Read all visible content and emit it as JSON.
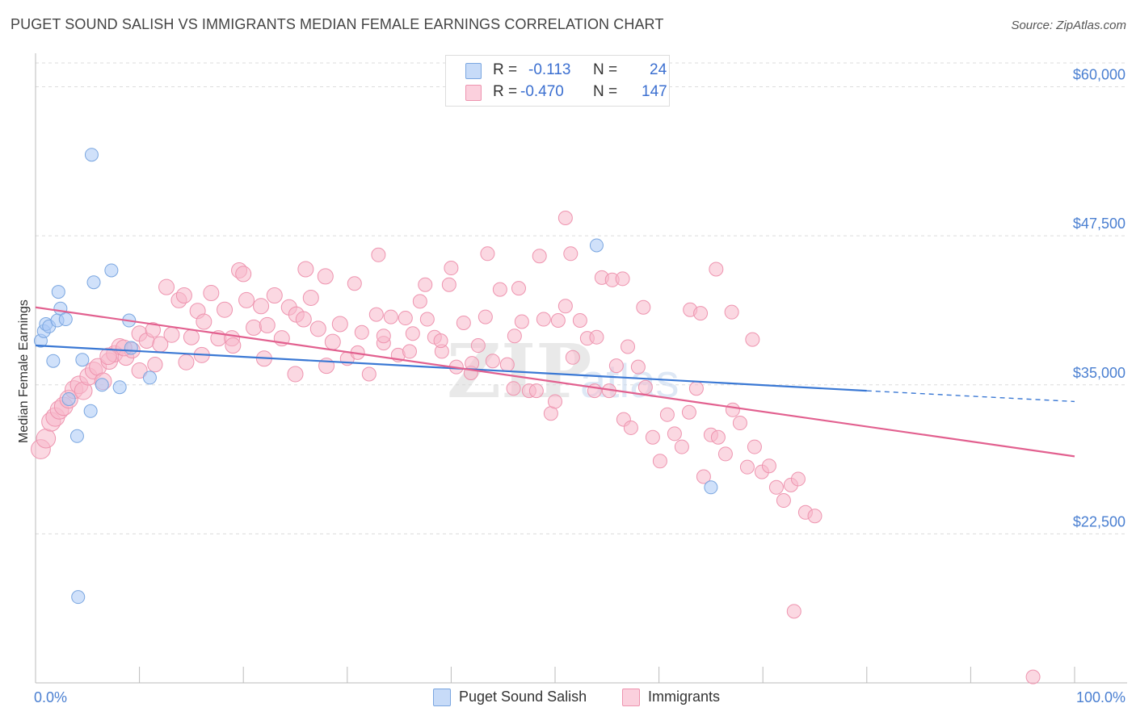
{
  "header": {
    "title": "PUGET SOUND SALISH VS IMMIGRANTS MEDIAN FEMALE EARNINGS CORRELATION CHART",
    "source": "Source: ZipAtlas.com"
  },
  "legend": {
    "rows": [
      {
        "r_label": "R =",
        "r_value": "-0.113",
        "n_label": "N =",
        "n_value": "24",
        "color": "#a9c8f5"
      },
      {
        "r_label": "R =",
        "r_value": "-0.470",
        "n_label": "N =",
        "n_value": "147",
        "color": "#f7b8cb"
      }
    ]
  },
  "watermark": {
    "zip": "ZIP",
    "atlas": "atlas"
  },
  "chart_data": {
    "type": "scatter",
    "title": "PUGET SOUND SALISH VS IMMIGRANTS MEDIAN FEMALE EARNINGS CORRELATION CHART",
    "xlabel": "",
    "ylabel": "Median Female Earnings",
    "xlim": [
      0,
      100
    ],
    "ylim": [
      10000,
      62000
    ],
    "x_tick_labels": [
      "0.0%",
      "100.0%"
    ],
    "y_ticks": [
      22500,
      35000,
      47500,
      60000
    ],
    "y_tick_labels": [
      "$22,500",
      "$35,000",
      "$47,500",
      "$60,000"
    ],
    "grid": "horizontal dashed",
    "legend_position": "top-center",
    "series": [
      {
        "name": "Puget Sound Salish",
        "color": "#a9c8f5",
        "stroke": "#7aa6e0",
        "trend": {
          "x0": 0,
          "y0": 38300,
          "x1": 80,
          "y1": 34500,
          "dash_to_x": 100,
          "dash_to_y": 33600,
          "color": "#3a78d4"
        },
        "points": [
          [
            0.5,
            38700
          ],
          [
            0.8,
            39500
          ],
          [
            1.0,
            40100
          ],
          [
            1.3,
            39900
          ],
          [
            1.7,
            37000
          ],
          [
            2.1,
            40400
          ],
          [
            2.2,
            42800
          ],
          [
            2.4,
            41400
          ],
          [
            2.9,
            40500
          ],
          [
            3.2,
            33800
          ],
          [
            4.0,
            30700
          ],
          [
            4.1,
            17200
          ],
          [
            4.5,
            37100
          ],
          [
            5.3,
            32800
          ],
          [
            5.4,
            54300
          ],
          [
            5.6,
            43600
          ],
          [
            6.4,
            35000
          ],
          [
            7.3,
            44600
          ],
          [
            8.1,
            34800
          ],
          [
            9.0,
            40400
          ],
          [
            9.2,
            38100
          ],
          [
            11.0,
            35600
          ],
          [
            54.0,
            46700
          ],
          [
            65.0,
            26400
          ]
        ]
      },
      {
        "name": "Immigrants",
        "color": "#f7b8cb",
        "stroke": "#ee94af",
        "trend": {
          "x0": 0,
          "y0": 41500,
          "x1": 100,
          "y1": 29000,
          "color": "#e2608f"
        },
        "points": [
          [
            0.5,
            29600
          ],
          [
            1.0,
            30500
          ],
          [
            1.5,
            31900
          ],
          [
            1.9,
            32300
          ],
          [
            2.3,
            32900
          ],
          [
            2.7,
            33200
          ],
          [
            3.2,
            33800
          ],
          [
            3.7,
            34600
          ],
          [
            4.2,
            35000
          ],
          [
            4.6,
            34500
          ],
          [
            5.1,
            35700
          ],
          [
            5.6,
            36200
          ],
          [
            6.0,
            36500
          ],
          [
            6.5,
            35300
          ],
          [
            7.1,
            37000
          ],
          [
            7.6,
            37600
          ],
          [
            8.1,
            38200
          ],
          [
            8.7,
            37300
          ],
          [
            9.3,
            37900
          ],
          [
            10.0,
            39300
          ],
          [
            10.7,
            38700
          ],
          [
            11.3,
            39600
          ],
          [
            12.0,
            38400
          ],
          [
            12.6,
            43200
          ],
          [
            13.1,
            39200
          ],
          [
            13.8,
            42100
          ],
          [
            14.3,
            42500
          ],
          [
            15.0,
            39000
          ],
          [
            15.6,
            41200
          ],
          [
            16.2,
            40300
          ],
          [
            16.9,
            42700
          ],
          [
            17.6,
            38900
          ],
          [
            18.2,
            41300
          ],
          [
            18.9,
            38900
          ],
          [
            19.6,
            44600
          ],
          [
            20.3,
            42100
          ],
          [
            21.0,
            39800
          ],
          [
            21.7,
            41600
          ],
          [
            22.3,
            40000
          ],
          [
            23.0,
            42500
          ],
          [
            23.7,
            38900
          ],
          [
            24.4,
            41500
          ],
          [
            25.1,
            40900
          ],
          [
            25.8,
            40500
          ],
          [
            26.5,
            42300
          ],
          [
            27.2,
            39700
          ],
          [
            27.9,
            44100
          ],
          [
            28.6,
            38600
          ],
          [
            29.3,
            40100
          ],
          [
            30.0,
            37200
          ],
          [
            30.7,
            43500
          ],
          [
            31.4,
            39400
          ],
          [
            32.1,
            35900
          ],
          [
            32.8,
            40900
          ],
          [
            33.5,
            38500
          ],
          [
            34.2,
            40700
          ],
          [
            34.9,
            37500
          ],
          [
            35.6,
            40600
          ],
          [
            36.3,
            39300
          ],
          [
            37.0,
            42000
          ],
          [
            37.7,
            40500
          ],
          [
            38.4,
            39000
          ],
          [
            39.1,
            37800
          ],
          [
            39.8,
            43400
          ],
          [
            40.5,
            36500
          ],
          [
            41.2,
            40200
          ],
          [
            41.9,
            36000
          ],
          [
            42.6,
            38300
          ],
          [
            43.3,
            40700
          ],
          [
            44.0,
            37000
          ],
          [
            44.7,
            43000
          ],
          [
            45.4,
            36700
          ],
          [
            46.1,
            39100
          ],
          [
            46.8,
            40300
          ],
          [
            47.5,
            34500
          ],
          [
            48.2,
            34500
          ],
          [
            48.9,
            40500
          ],
          [
            49.6,
            32600
          ],
          [
            50.3,
            40400
          ],
          [
            51.0,
            41600
          ],
          [
            51.7,
            37300
          ],
          [
            52.4,
            40400
          ],
          [
            53.1,
            38900
          ],
          [
            53.8,
            34500
          ],
          [
            54.5,
            44000
          ],
          [
            55.2,
            34500
          ],
          [
            55.9,
            36600
          ],
          [
            56.6,
            32100
          ],
          [
            57.3,
            31400
          ],
          [
            58.0,
            36500
          ],
          [
            58.7,
            34800
          ],
          [
            59.4,
            30600
          ],
          [
            60.1,
            28600
          ],
          [
            60.8,
            32500
          ],
          [
            61.5,
            30900
          ],
          [
            62.2,
            29800
          ],
          [
            62.9,
            32700
          ],
          [
            63.6,
            34700
          ],
          [
            64.3,
            27300
          ],
          [
            65.0,
            30800
          ],
          [
            65.7,
            30600
          ],
          [
            66.4,
            29200
          ],
          [
            67.1,
            32900
          ],
          [
            67.8,
            31800
          ],
          [
            68.5,
            28100
          ],
          [
            69.2,
            29800
          ],
          [
            69.9,
            27700
          ],
          [
            70.6,
            28200
          ],
          [
            71.3,
            26400
          ],
          [
            72.0,
            25300
          ],
          [
            72.7,
            26600
          ],
          [
            73.4,
            27100
          ],
          [
            74.1,
            24300
          ],
          [
            75.0,
            24000
          ],
          [
            20.0,
            44300
          ],
          [
            26.0,
            44700
          ],
          [
            33.0,
            45900
          ],
          [
            37.5,
            43400
          ],
          [
            40.0,
            44800
          ],
          [
            43.5,
            46000
          ],
          [
            46.5,
            43100
          ],
          [
            48.5,
            45800
          ],
          [
            51.0,
            49000
          ],
          [
            51.5,
            46000
          ],
          [
            55.5,
            43800
          ],
          [
            56.5,
            43900
          ],
          [
            58.5,
            41500
          ],
          [
            63.0,
            41300
          ],
          [
            64.0,
            41000
          ],
          [
            65.5,
            44700
          ],
          [
            67.0,
            41100
          ],
          [
            69.0,
            38800
          ],
          [
            57.0,
            38200
          ],
          [
            54.0,
            39000
          ],
          [
            50.0,
            33600
          ],
          [
            46.0,
            34700
          ],
          [
            42.0,
            36800
          ],
          [
            39.0,
            38700
          ],
          [
            36.0,
            37800
          ],
          [
            33.5,
            39100
          ],
          [
            31.0,
            37700
          ],
          [
            28.0,
            36600
          ],
          [
            25.0,
            35900
          ],
          [
            22.0,
            37200
          ],
          [
            19.0,
            38300
          ],
          [
            16.0,
            37500
          ],
          [
            14.5,
            36900
          ],
          [
            11.5,
            36700
          ],
          [
            10.0,
            36200
          ],
          [
            8.5,
            38100
          ],
          [
            7.0,
            37400
          ],
          [
            73.0,
            16000
          ],
          [
            96.0,
            10500
          ]
        ]
      }
    ]
  },
  "bottom_legend": {
    "items": [
      {
        "label": "Puget Sound Salish",
        "color": "#a9c8f5"
      },
      {
        "label": "Immigrants",
        "color": "#f7b8cb"
      }
    ]
  }
}
